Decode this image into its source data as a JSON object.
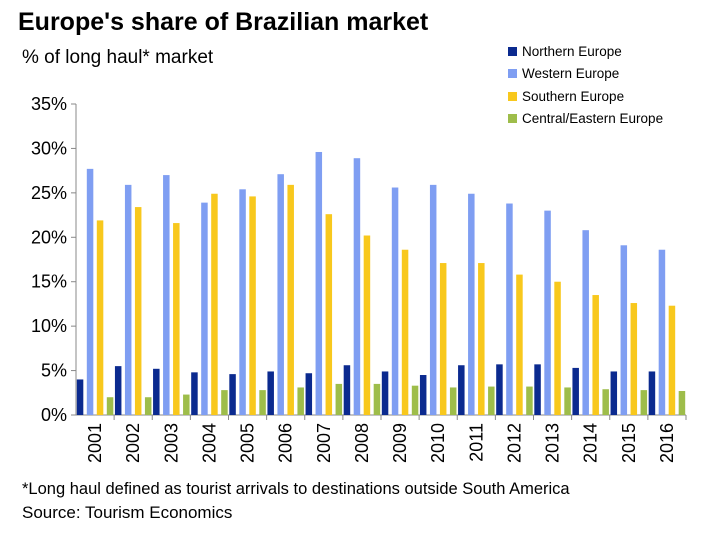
{
  "chart_data": {
    "type": "bar",
    "title": "Europe's share of Brazilian market",
    "subtitle": "% of long haul* market",
    "categories": [
      "2001",
      "2002",
      "2003",
      "2004",
      "2005",
      "2006",
      "2007",
      "2008",
      "2009",
      "2010",
      "2011",
      "2012",
      "2013",
      "2014",
      "2015",
      "2016"
    ],
    "series": [
      {
        "name": "Northern Europe",
        "color": "#0b2a8f",
        "values": [
          4.0,
          5.5,
          5.2,
          4.8,
          4.6,
          4.9,
          4.7,
          5.6,
          4.9,
          4.5,
          5.6,
          5.7,
          5.7,
          5.3,
          4.9,
          4.9
        ]
      },
      {
        "name": "Western Europe",
        "color": "#7f9ef2",
        "values": [
          27.7,
          25.9,
          27.0,
          23.9,
          25.4,
          27.1,
          29.6,
          28.9,
          25.6,
          25.9,
          24.9,
          23.8,
          23.0,
          20.8,
          19.1,
          18.6
        ]
      },
      {
        "name": "Southern Europe",
        "color": "#f8c81d",
        "values": [
          21.9,
          23.4,
          21.6,
          24.9,
          24.6,
          25.9,
          22.6,
          20.2,
          18.6,
          17.1,
          17.1,
          15.8,
          15.0,
          13.5,
          12.6,
          12.3
        ]
      },
      {
        "name": "Central/Eastern Europe",
        "color": "#9ebd4a",
        "values": [
          2.0,
          2.0,
          2.3,
          2.8,
          2.8,
          3.1,
          3.5,
          3.5,
          3.3,
          3.1,
          3.2,
          3.2,
          3.1,
          2.9,
          2.8,
          2.7
        ]
      }
    ],
    "ylim": [
      0,
      35
    ],
    "yticks": [
      0,
      5,
      10,
      15,
      20,
      25,
      30,
      35
    ],
    "ytick_labels": [
      "0%",
      "5%",
      "10%",
      "15%",
      "20%",
      "25%",
      "30%",
      "35%"
    ],
    "xlabel": "",
    "ylabel": "",
    "grid": false,
    "legend_position": "top-right"
  },
  "footnote": "*Long haul defined as tourist arrivals to destinations outside South America",
  "source": "Source: Tourism Economics"
}
